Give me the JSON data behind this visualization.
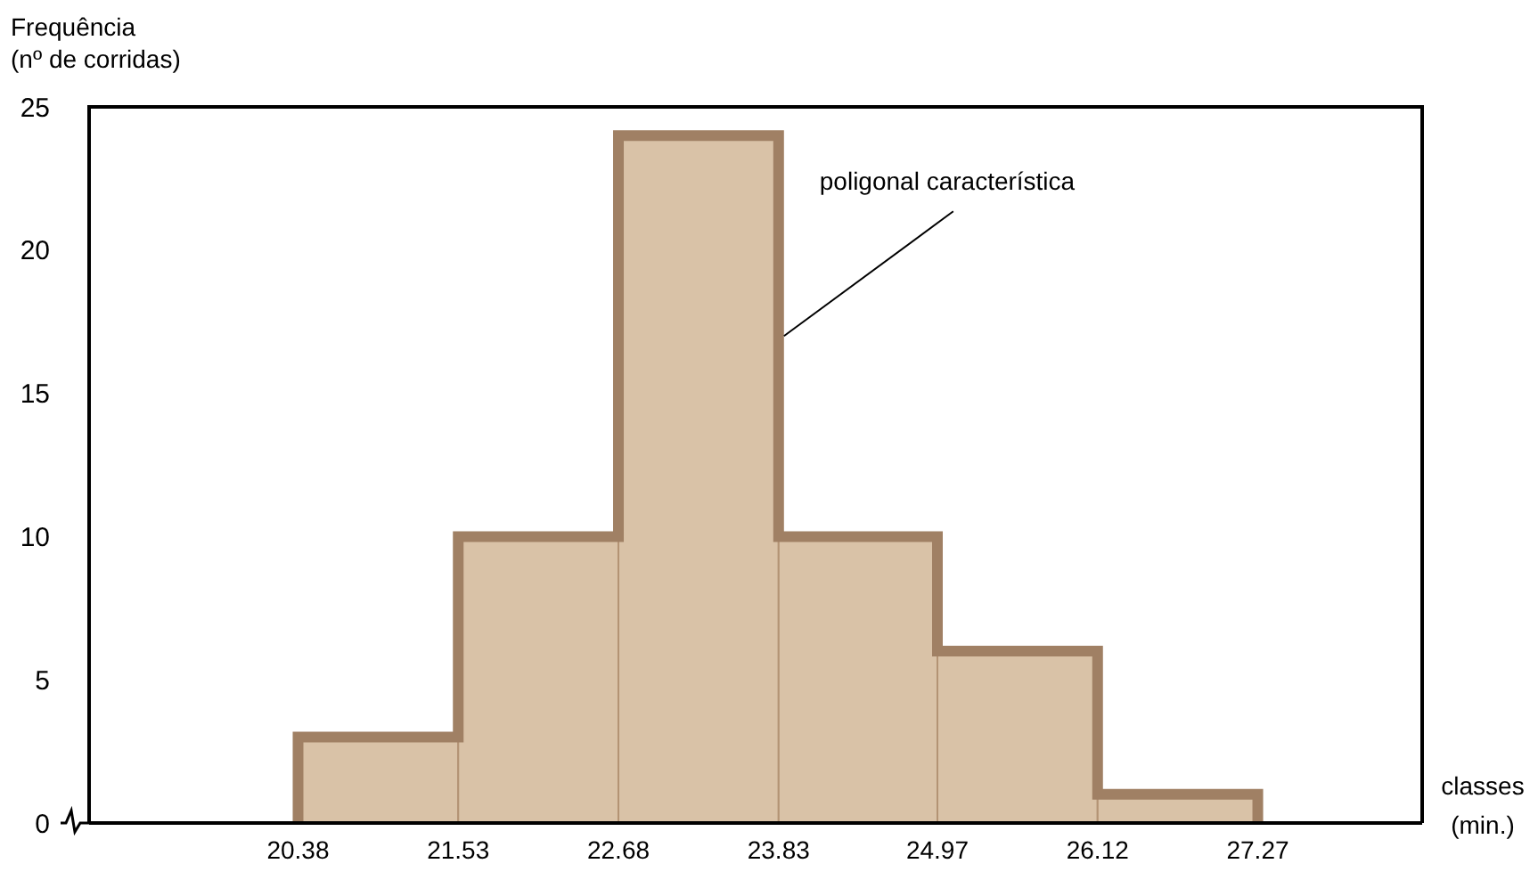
{
  "chart_data": {
    "type": "histogram",
    "ylabel": "Frequência\n(nº de corridas)",
    "xlabel": "classes\n(min.)",
    "bins": [
      20.38,
      21.53,
      22.68,
      23.83,
      24.97,
      26.12,
      27.27
    ],
    "values": [
      3,
      10,
      24,
      10,
      6,
      1
    ],
    "color": "#d9c2a7",
    "xlim": [
      18.88,
      28.45
    ],
    "xticks": [
      20.38,
      21.53,
      22.68,
      23.83,
      24.97,
      26.12,
      27.27
    ],
    "ylim": [
      0,
      25
    ],
    "yticks": [
      0,
      5,
      10,
      15,
      20,
      25
    ],
    "series": [
      {
        "type": "line",
        "color": "#a08064",
        "x": [
          20.38,
          20.38,
          21.53,
          21.53,
          22.68,
          22.68,
          23.83,
          23.83,
          24.97,
          24.97,
          26.12,
          26.12,
          27.27,
          27.27
        ],
        "values": [
          0,
          3,
          3,
          10,
          10,
          24,
          24,
          10,
          10,
          6,
          6,
          1,
          1,
          0
        ]
      }
    ],
    "grid": false,
    "annotations": [
      {
        "text": "poligonal característica",
        "x": 23.83,
        "y": 17
      }
    ]
  }
}
